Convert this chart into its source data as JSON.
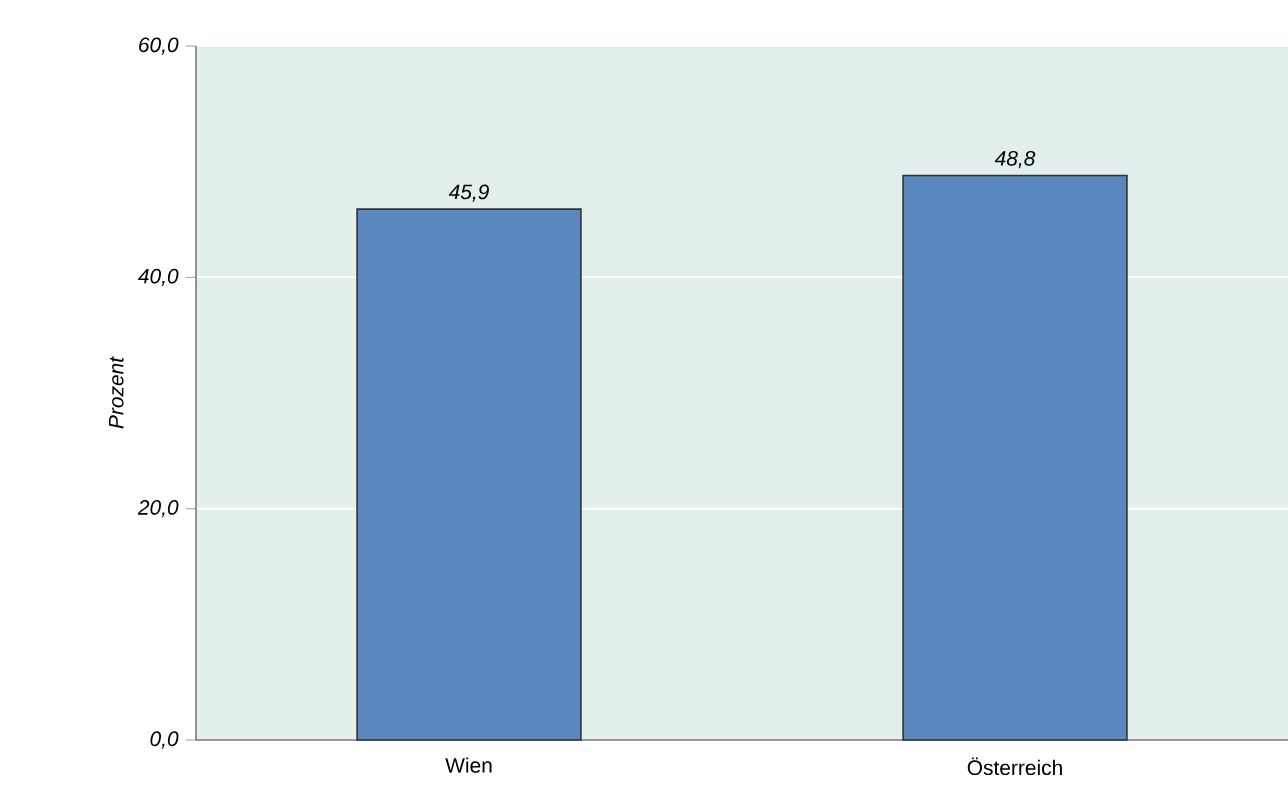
{
  "chart_data": {
    "type": "bar",
    "ylabel": "Prozent",
    "categories": [
      "Wien",
      "Österreich"
    ],
    "values": [
      45.9,
      48.8
    ],
    "color": "#5b87bf",
    "value_labels": [
      "45,9",
      "48,8"
    ],
    "ylim": [
      0,
      60
    ],
    "yticks": [
      {
        "value": 0,
        "label": "0,0"
      },
      {
        "value": 20,
        "label": "20,0"
      },
      {
        "value": 40,
        "label": "40,0"
      },
      {
        "value": 60,
        "label": "60,0"
      }
    ],
    "grid": "y"
  }
}
